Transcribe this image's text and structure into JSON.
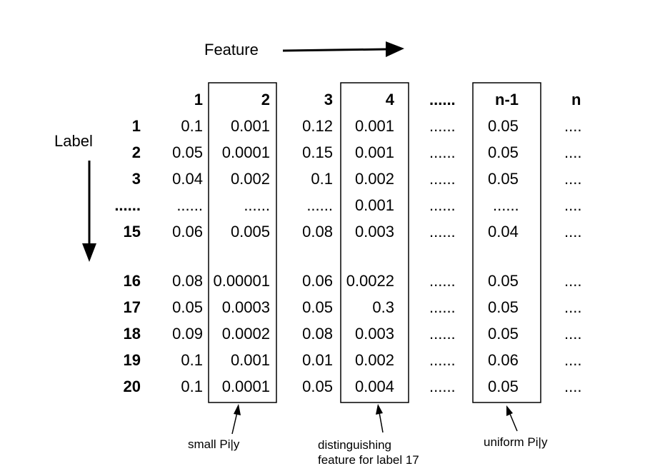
{
  "feature_label": "Feature",
  "label_axis": "Label",
  "column_headers": [
    "1",
    "2",
    "3",
    "4",
    "......",
    "n-1",
    "n"
  ],
  "rows": [
    {
      "label": "1",
      "cells": [
        "0.1",
        "0.001",
        "0.12",
        "0.001",
        "......",
        "0.05",
        "...."
      ]
    },
    {
      "label": "2",
      "cells": [
        "0.05",
        "0.0001",
        "0.15",
        "0.001",
        "......",
        "0.05",
        "...."
      ]
    },
    {
      "label": "3",
      "cells": [
        "0.04",
        "0.002",
        "0.1",
        "0.002",
        "......",
        "0.05",
        "...."
      ]
    },
    {
      "label": "......",
      "cells": [
        "......",
        "......",
        "......",
        "0.001",
        "......",
        "......",
        "...."
      ]
    },
    {
      "label": "15",
      "cells": [
        "0.06",
        "0.005",
        "0.08",
        "0.003",
        "......",
        "0.04",
        "...."
      ]
    },
    {
      "label": "16",
      "cells": [
        "0.08",
        "0.00001",
        "0.06",
        "0.0022",
        "......",
        "0.05",
        "...."
      ]
    },
    {
      "label": "17",
      "cells": [
        "0.05",
        "0.0003",
        "0.05",
        "0.3",
        "......",
        "0.05",
        "...."
      ]
    },
    {
      "label": "18",
      "cells": [
        "0.09",
        "0.0002",
        "0.08",
        "0.003",
        "......",
        "0.05",
        "...."
      ]
    },
    {
      "label": "19",
      "cells": [
        "0.1",
        "0.001",
        "0.01",
        "0.002",
        "......",
        "0.06",
        "...."
      ]
    },
    {
      "label": "20",
      "cells": [
        "0.1",
        "0.0001",
        "0.05",
        "0.004",
        "......",
        "0.05",
        "...."
      ]
    }
  ],
  "annotations": {
    "small": "small Pi|y",
    "distinguishing_line1": "distinguishing",
    "distinguishing_line2": "feature for label 17",
    "uniform": "uniform Pi|y"
  }
}
